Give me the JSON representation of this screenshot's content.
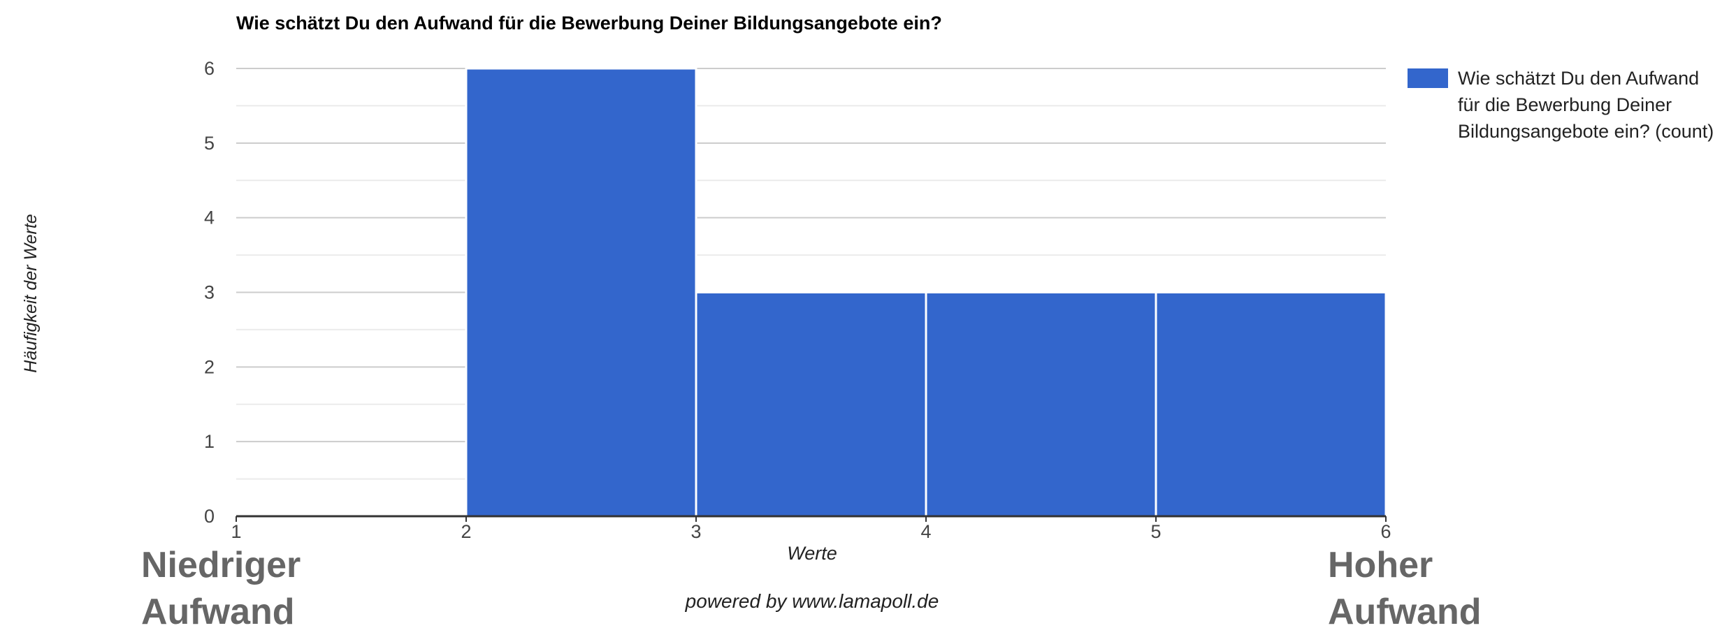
{
  "chart_data": {
    "type": "bar",
    "title": "Wie schätzt Du den Aufwand für die Bewerbung Deiner Bildungsangebote ein?",
    "xlabel": "Werte",
    "ylabel": "Häufigkeit der Werte",
    "xlim": [
      1,
      6
    ],
    "ylim": [
      0,
      6
    ],
    "x_ticks": [
      "1",
      "2",
      "3",
      "4",
      "5",
      "6"
    ],
    "y_ticks": [
      "0",
      "1",
      "2",
      "3",
      "4",
      "5",
      "6"
    ],
    "bins": [
      {
        "from": 1,
        "to": 2,
        "value": 0
      },
      {
        "from": 2,
        "to": 3,
        "value": 6
      },
      {
        "from": 3,
        "to": 4,
        "value": 3
      },
      {
        "from": 4,
        "to": 5,
        "value": 3
      },
      {
        "from": 5,
        "to": 6,
        "value": 3
      }
    ],
    "series": [
      {
        "name": "Wie schätzt Du den Aufwand für die Bewerbung Deiner Bildungsangebote ein? (count)",
        "color": "#3366cc"
      }
    ],
    "legend_position": "right",
    "grid": true
  },
  "legend_lines": [
    "Wie schätzt Du den Aufwand",
    "für die Bewerbung Deiner",
    "Bildungsangebote ein? (count)"
  ],
  "credit": "powered by www.lamapoll.de",
  "annotations": {
    "low": [
      "Niedriger",
      "Aufwand"
    ],
    "high": [
      "Hoher",
      "Aufwand"
    ]
  }
}
